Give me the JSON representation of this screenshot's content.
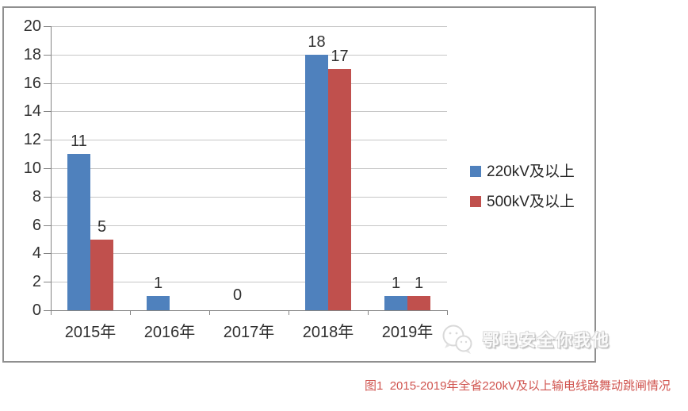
{
  "chart_data": {
    "type": "bar",
    "categories": [
      "2015年",
      "2016年",
      "2017年",
      "2018年",
      "2019年"
    ],
    "series": [
      {
        "name": "220kV及以上",
        "color": "#4F81BD",
        "values": [
          11,
          1,
          0,
          18,
          1
        ],
        "labels": [
          "11",
          "1",
          "0",
          "18",
          "1"
        ]
      },
      {
        "name": "500kV及以上",
        "color": "#C0504D",
        "values": [
          5,
          0,
          0,
          17,
          1
        ],
        "labels": [
          "5",
          "",
          "",
          "17",
          "1"
        ]
      }
    ],
    "title": "",
    "xlabel": "",
    "ylabel": "",
    "ylim": [
      0,
      20
    ],
    "ytick_step": 2,
    "grid": true,
    "legend_position": "right"
  },
  "legend": {
    "items": [
      {
        "label": "220kV及以上",
        "color": "#4F81BD"
      },
      {
        "label": "500kV及以上",
        "color": "#C0504D"
      }
    ]
  },
  "watermark": {
    "icon": "chat-bubbles-logo",
    "text": "鄂电安全你我他"
  },
  "caption": "图1  2015-2019年全省220kV及以上输电线路舞动跳闸情况",
  "colors": {
    "grid": "#c6c6c6",
    "axis": "#848484",
    "border": "#8f8f8f",
    "bar_blue": "#4F81BD",
    "bar_red": "#C0504D",
    "text": "#303030",
    "caption_text": "#d0544f",
    "watermark_text": "#d6d6d6"
  }
}
